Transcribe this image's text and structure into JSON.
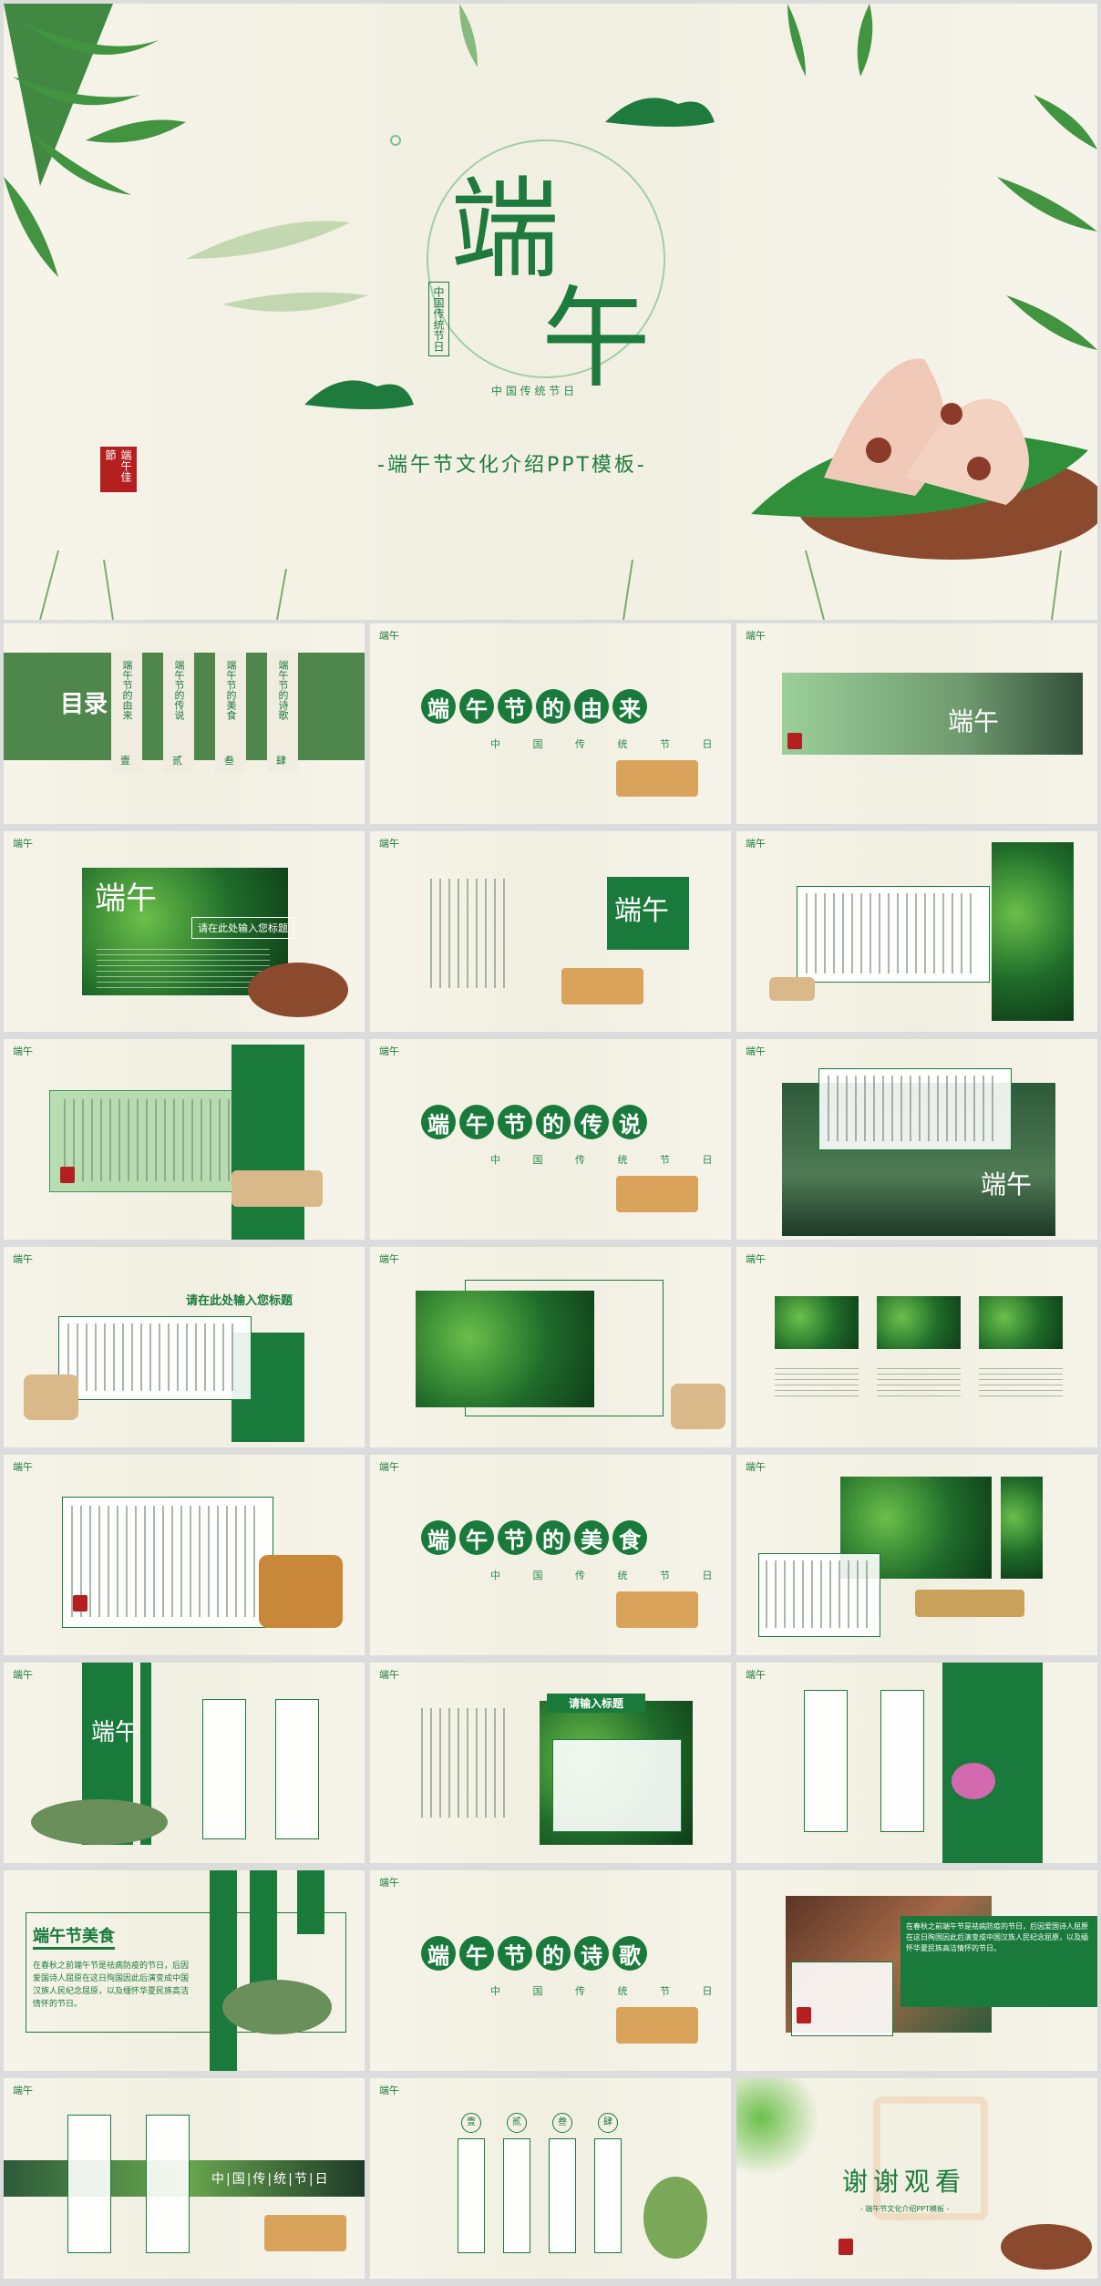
{
  "hero": {
    "big_char_1": "端",
    "big_char_2": "午",
    "vertical_badge": "中国传统节日",
    "small_sub": "中 国 传 统 节 日",
    "subtitle": "-端午节文化介绍PPT模板-",
    "seal_text": "端午佳節"
  },
  "toc": {
    "title": "目录",
    "items": [
      {
        "label": "端午节的由来",
        "num": "壹"
      },
      {
        "label": "端午节的传说",
        "num": "贰"
      },
      {
        "label": "端午节的美食",
        "num": "叁"
      },
      {
        "label": "端午节的诗歌",
        "num": "肆"
      }
    ]
  },
  "sections": {
    "s1": [
      "端",
      "午",
      "节",
      "的",
      "由",
      "来"
    ],
    "s2": [
      "端",
      "午",
      "节",
      "的",
      "传",
      "说"
    ],
    "s3": [
      "端",
      "午",
      "节",
      "的",
      "美",
      "食"
    ],
    "s4": [
      "端",
      "午",
      "节",
      "的",
      "诗",
      "歌"
    ],
    "sub": "中 国 传 统 节 日"
  },
  "labels": {
    "logo": "端午",
    "input_title": "请在此处输入您标题",
    "input_title_short": "请输入标题",
    "food_title": "端午节美食",
    "food_text": "在春秋之前端午节是祛病防疫的节日，后因爱国诗人屈原在这日殉国因此后演变成中国汉族人民纪念屈原，以及缅怀华夏民族高洁情怀的节日。",
    "poem_text": "在春秋之前端午节是祛病防疫的节日，后因爱国诗人屈原在这日殉国因此后演变成中国汉族人民纪念屈原，以及缅怀华夏民族高洁情怀的节日。",
    "strip_text": "中|国|传|统|节|日",
    "nums": [
      "壹",
      "贰",
      "叁",
      "肆"
    ],
    "thanks": "谢谢观看",
    "thanks_sub": "- 端午节文化介绍PPT模板 -"
  },
  "colors": {
    "green": "#1a7a3c",
    "paper": "#f4f2e6",
    "seal": "#b42020"
  }
}
